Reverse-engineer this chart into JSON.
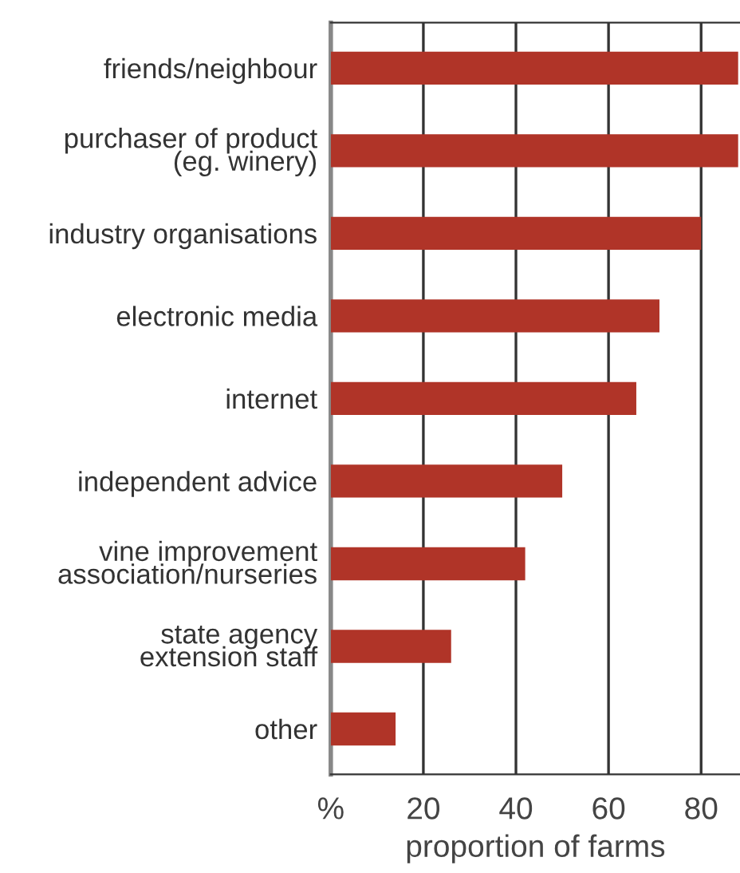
{
  "chart_data": {
    "type": "bar",
    "orientation": "horizontal",
    "xlabel": "proportion of farms",
    "categories": [
      "friends/neighbour",
      "purchaser of product\n(eg. winery)",
      "industry organisations",
      "electronic media",
      "internet",
      "independent advice",
      "vine improvement\nassociation/nurseries",
      "state agency\nextension staff",
      "other"
    ],
    "values": [
      88,
      88,
      80,
      71,
      66,
      50,
      42,
      26,
      14
    ],
    "color": "#b03428",
    "xlim": [
      0,
      88.4
    ],
    "xticks": [
      {
        "value": 0,
        "label": "%"
      },
      20,
      40,
      60,
      80
    ],
    "grid": "x",
    "legend": false
  }
}
